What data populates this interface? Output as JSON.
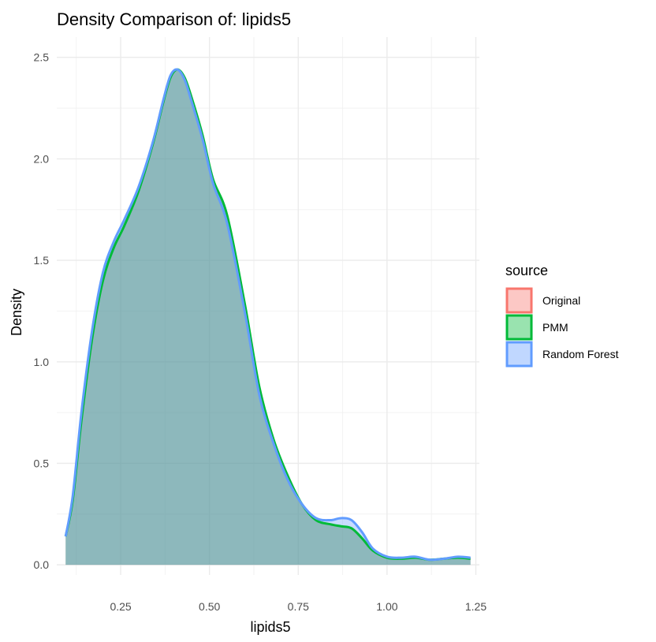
{
  "chart_data": {
    "type": "area",
    "title": "Density Comparison of: lipids5",
    "xlabel": "lipids5",
    "ylabel": "Density",
    "xlim": [
      0.07,
      1.26
    ],
    "ylim": [
      -0.05,
      2.6
    ],
    "x_ticks": [
      0.25,
      0.5,
      0.75,
      1.0,
      1.25
    ],
    "x_tick_labels": [
      "0.25",
      "0.50",
      "0.75",
      "1.00",
      "1.25"
    ],
    "y_ticks": [
      0.0,
      0.5,
      1.0,
      1.5,
      2.0,
      2.5
    ],
    "y_tick_labels": [
      "0.0",
      "0.5",
      "1.0",
      "1.5",
      "2.0",
      "2.5"
    ],
    "grid": true,
    "legend": {
      "title": "source",
      "position": "right"
    },
    "series": [
      {
        "name": "Original",
        "color": "#F8766D",
        "x": [
          0.095,
          0.115,
          0.14,
          0.17,
          0.2,
          0.23,
          0.26,
          0.3,
          0.34,
          0.37,
          0.39,
          0.41,
          0.43,
          0.45,
          0.48,
          0.51,
          0.55,
          0.6,
          0.64,
          0.68,
          0.72,
          0.76,
          0.8,
          0.84,
          0.87,
          0.9,
          0.93,
          0.96,
          1.0,
          1.04,
          1.08,
          1.12,
          1.16,
          1.2,
          1.235
        ],
        "y": [
          0.14,
          0.32,
          0.72,
          1.12,
          1.4,
          1.56,
          1.67,
          1.84,
          2.07,
          2.28,
          2.4,
          2.44,
          2.4,
          2.3,
          2.12,
          1.9,
          1.72,
          1.28,
          0.88,
          0.62,
          0.44,
          0.3,
          0.22,
          0.2,
          0.19,
          0.18,
          0.13,
          0.07,
          0.035,
          0.03,
          0.035,
          0.025,
          0.03,
          0.035,
          0.03
        ]
      },
      {
        "name": "PMM",
        "color": "#00BA38",
        "x": [
          0.095,
          0.115,
          0.14,
          0.17,
          0.2,
          0.23,
          0.26,
          0.3,
          0.34,
          0.37,
          0.39,
          0.41,
          0.43,
          0.45,
          0.48,
          0.51,
          0.55,
          0.6,
          0.64,
          0.68,
          0.72,
          0.76,
          0.8,
          0.84,
          0.87,
          0.9,
          0.93,
          0.96,
          1.0,
          1.04,
          1.08,
          1.12,
          1.16,
          1.2,
          1.235
        ],
        "y": [
          0.14,
          0.32,
          0.72,
          1.12,
          1.4,
          1.56,
          1.67,
          1.84,
          2.07,
          2.28,
          2.4,
          2.44,
          2.4,
          2.3,
          2.12,
          1.9,
          1.72,
          1.28,
          0.88,
          0.62,
          0.44,
          0.3,
          0.22,
          0.2,
          0.19,
          0.18,
          0.13,
          0.07,
          0.035,
          0.03,
          0.035,
          0.025,
          0.03,
          0.035,
          0.03
        ]
      },
      {
        "name": "Random Forest",
        "color": "#619CFF",
        "x": [
          0.095,
          0.115,
          0.14,
          0.17,
          0.2,
          0.23,
          0.26,
          0.3,
          0.34,
          0.37,
          0.39,
          0.41,
          0.43,
          0.45,
          0.48,
          0.51,
          0.55,
          0.6,
          0.64,
          0.68,
          0.72,
          0.76,
          0.8,
          0.84,
          0.87,
          0.9,
          0.93,
          0.96,
          1.0,
          1.04,
          1.08,
          1.12,
          1.16,
          1.2,
          1.235
        ],
        "y": [
          0.14,
          0.34,
          0.76,
          1.16,
          1.44,
          1.59,
          1.7,
          1.86,
          2.08,
          2.29,
          2.41,
          2.44,
          2.39,
          2.28,
          2.1,
          1.88,
          1.68,
          1.24,
          0.84,
          0.6,
          0.42,
          0.3,
          0.23,
          0.22,
          0.23,
          0.22,
          0.16,
          0.08,
          0.04,
          0.035,
          0.04,
          0.025,
          0.03,
          0.04,
          0.035
        ]
      }
    ]
  }
}
